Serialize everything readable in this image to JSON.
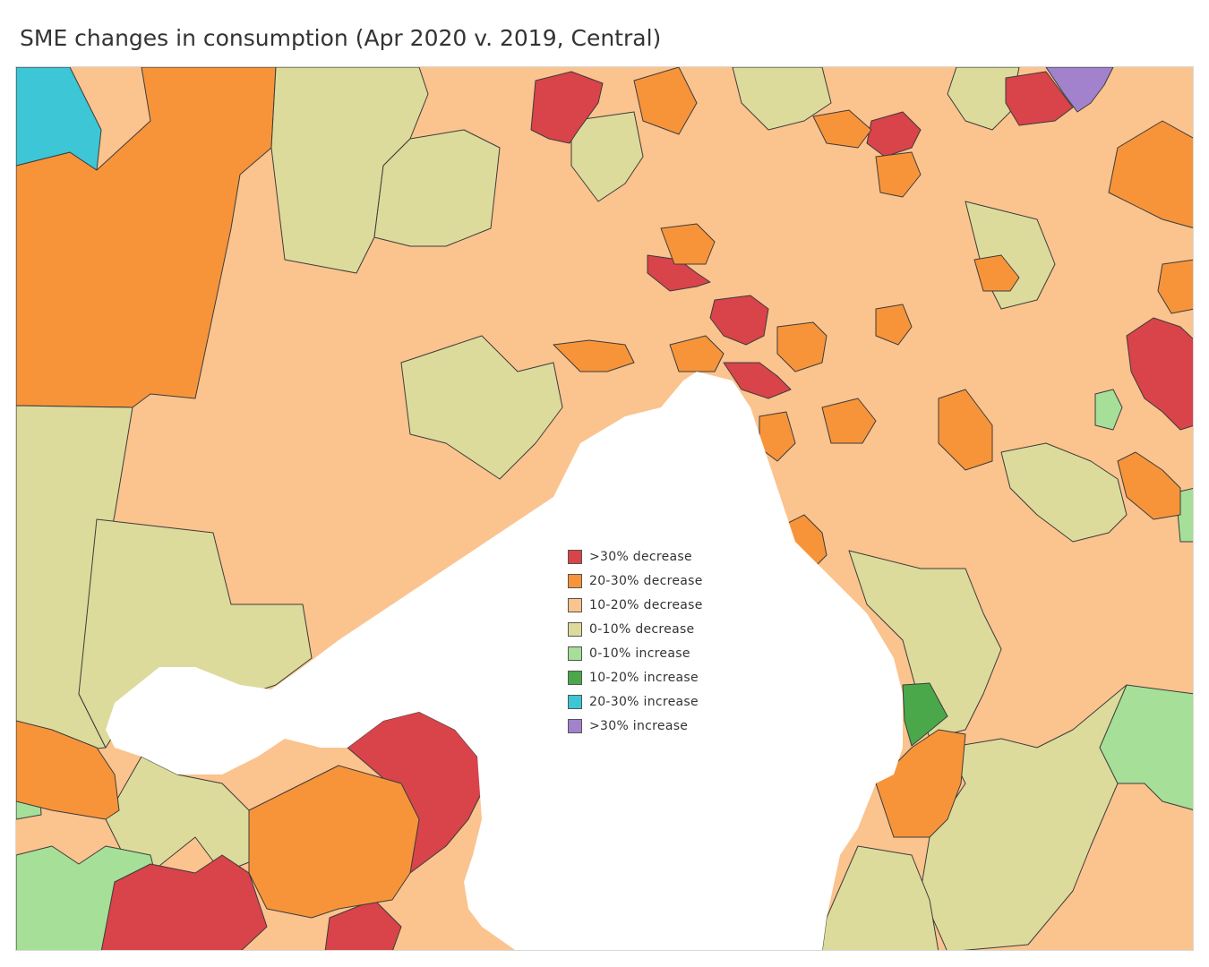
{
  "title": "SME changes in consumption (Apr 2020 v. 2019, Central)",
  "colors": {
    "dec_30_plus": "#d9434a",
    "dec_20_30": "#f7943a",
    "dec_10_20": "#fbc38e",
    "dec_0_10": "#dcdb9b",
    "inc_0_10": "#a6df98",
    "inc_10_20": "#4aa84a",
    "inc_20_30": "#3cc6d6",
    "inc_30_plus": "#a282cc",
    "water": "#ffffff",
    "boundary": "#3c3c3c"
  },
  "legend": {
    "items": [
      {
        "label": ">30% decrease",
        "color": "#d9434a"
      },
      {
        "label": "20-30% decrease",
        "color": "#f7943a"
      },
      {
        "label": "10-20% decrease",
        "color": "#fbc38e"
      },
      {
        "label": "0-10% decrease",
        "color": "#dcdb9b"
      },
      {
        "label": "0-10% increase",
        "color": "#a6df98"
      },
      {
        "label": "10-20% increase",
        "color": "#4aa84a"
      },
      {
        "label": "20-30% increase",
        "color": "#3cc6d6"
      },
      {
        "label": ">30% increase",
        "color": "#a282cc"
      }
    ]
  }
}
